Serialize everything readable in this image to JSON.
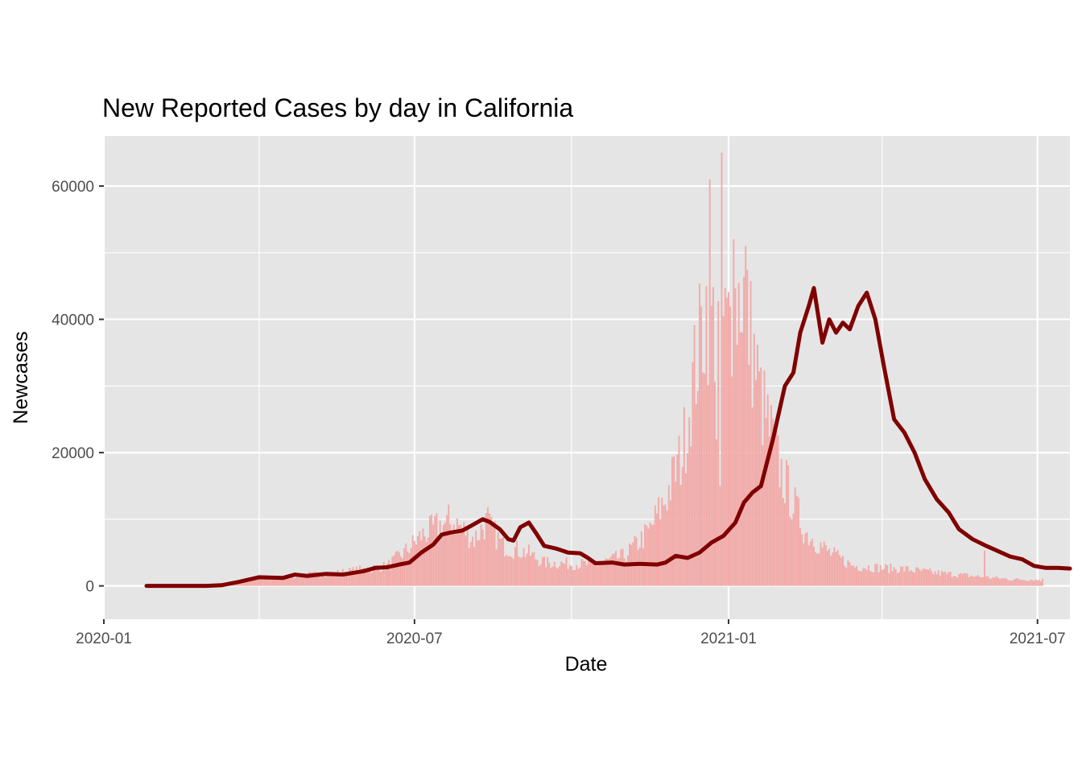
{
  "chart_data": {
    "type": "bar",
    "title": "New Reported Cases by day in California",
    "xlabel": "Date",
    "ylabel": "Newcases",
    "x_axis": {
      "type": "date",
      "range": [
        "2020-01-01",
        "2021-07-20"
      ],
      "ticks": [
        {
          "date": "2020-01-01",
          "label": "2020-01"
        },
        {
          "date": "2020-07-01",
          "label": "2020-07"
        },
        {
          "date": "2021-01-01",
          "label": "2021-01"
        },
        {
          "date": "2021-07-01",
          "label": "2021-07"
        }
      ],
      "minor_ticks": [
        "2020-04-01",
        "2020-10-01",
        "2021-04-01"
      ]
    },
    "y_axis": {
      "range": [
        -5000,
        67500
      ],
      "ticks": [
        0,
        20000,
        40000,
        60000
      ],
      "tick_labels": [
        "0",
        "20000",
        "40000",
        "60000"
      ],
      "minor_ticks": [
        10000,
        30000,
        50000
      ]
    },
    "grid": true,
    "legend": "none",
    "colors": {
      "panel_bg": "#e5e5e5",
      "grid": "#ffffff",
      "bar": "#f2a9a7",
      "line": "#800000"
    },
    "series": [
      {
        "type": "bar",
        "x_start": "2020-01-26",
        "x_end": "2021-07-04",
        "daily_new_cases_anchor_points": [
          [
            "2020-01-26",
            0
          ],
          [
            "2020-03-01",
            0
          ],
          [
            "2020-03-15",
            300
          ],
          [
            "2020-04-01",
            1200
          ],
          [
            "2020-04-15",
            1300
          ],
          [
            "2020-05-01",
            1700
          ],
          [
            "2020-05-15",
            1900
          ],
          [
            "2020-06-01",
            2500
          ],
          [
            "2020-06-15",
            3000
          ],
          [
            "2020-06-25",
            5000
          ],
          [
            "2020-07-05",
            7500
          ],
          [
            "2020-07-15",
            9000
          ],
          [
            "2020-07-25",
            9500
          ],
          [
            "2020-08-05",
            7000
          ],
          [
            "2020-08-12",
            9500
          ],
          [
            "2020-08-22",
            6000
          ],
          [
            "2020-09-05",
            5000
          ],
          [
            "2020-09-15",
            3500
          ],
          [
            "2020-10-01",
            3300
          ],
          [
            "2020-10-15",
            3200
          ],
          [
            "2020-11-01",
            4500
          ],
          [
            "2020-11-15",
            8000
          ],
          [
            "2020-11-25",
            13000
          ],
          [
            "2020-12-05",
            20000
          ],
          [
            "2020-12-12",
            32000
          ],
          [
            "2020-12-19",
            42000
          ],
          [
            "2020-12-25",
            38000
          ],
          [
            "2021-01-01",
            39000
          ],
          [
            "2021-01-09",
            45000
          ],
          [
            "2021-01-20",
            28000
          ],
          [
            "2021-02-01",
            17000
          ],
          [
            "2021-02-15",
            8000
          ],
          [
            "2021-03-01",
            5000
          ],
          [
            "2021-03-15",
            3000
          ],
          [
            "2021-04-01",
            2700
          ],
          [
            "2021-04-15",
            2500
          ],
          [
            "2021-05-01",
            2000
          ],
          [
            "2021-05-15",
            1700
          ],
          [
            "2021-06-01",
            1300
          ],
          [
            "2021-06-15",
            1000
          ],
          [
            "2021-07-04",
            900
          ]
        ],
        "spikes": [
          [
            "2020-07-21",
            12200
          ],
          [
            "2020-08-13",
            11800
          ],
          [
            "2020-12-21",
            61000
          ],
          [
            "2020-12-28",
            65000
          ],
          [
            "2021-01-04",
            52000
          ],
          [
            "2021-01-11",
            51000
          ],
          [
            "2021-05-31",
            5300
          ],
          [
            "2020-12-27",
            15000
          ],
          [
            "2020-12-25",
            22000
          ]
        ]
      },
      {
        "type": "line",
        "points": [
          [
            "2020-01-26",
            0
          ],
          [
            "2020-03-01",
            0
          ],
          [
            "2020-03-10",
            100
          ],
          [
            "2020-03-20",
            600
          ],
          [
            "2020-04-01",
            1300
          ],
          [
            "2020-04-15",
            1200
          ],
          [
            "2020-04-22",
            1700
          ],
          [
            "2020-04-29",
            1500
          ],
          [
            "2020-05-10",
            1800
          ],
          [
            "2020-05-20",
            1700
          ],
          [
            "2020-06-01",
            2200
          ],
          [
            "2020-06-08",
            2700
          ],
          [
            "2020-06-15",
            2800
          ],
          [
            "2020-06-22",
            3200
          ],
          [
            "2020-06-28",
            3500
          ],
          [
            "2020-07-05",
            5000
          ],
          [
            "2020-07-12",
            6200
          ],
          [
            "2020-07-17",
            7700
          ],
          [
            "2020-07-22",
            8000
          ],
          [
            "2020-07-29",
            8300
          ],
          [
            "2020-08-03",
            9000
          ],
          [
            "2020-08-10",
            10000
          ],
          [
            "2020-08-14",
            9600
          ],
          [
            "2020-08-20",
            8500
          ],
          [
            "2020-08-25",
            7000
          ],
          [
            "2020-08-28",
            6800
          ],
          [
            "2020-09-01",
            8800
          ],
          [
            "2020-09-06",
            9500
          ],
          [
            "2020-09-10",
            8000
          ],
          [
            "2020-09-15",
            6000
          ],
          [
            "2020-09-22",
            5600
          ],
          [
            "2020-09-29",
            5000
          ],
          [
            "2020-10-06",
            4900
          ],
          [
            "2020-10-10",
            4300
          ],
          [
            "2020-10-15",
            3400
          ],
          [
            "2020-10-25",
            3500
          ],
          [
            "2020-11-01",
            3200
          ],
          [
            "2020-11-10",
            3300
          ],
          [
            "2020-11-20",
            3200
          ],
          [
            "2020-11-25",
            3500
          ],
          [
            "2020-12-01",
            4500
          ],
          [
            "2020-12-08",
            4200
          ],
          [
            "2020-12-15",
            5000
          ],
          [
            "2020-12-22",
            6500
          ],
          [
            "2020-12-29",
            7500
          ],
          [
            "2021-01-05",
            9500
          ],
          [
            "2021-01-10",
            12500
          ],
          [
            "2021-01-15",
            14000
          ],
          [
            "2021-01-20",
            15000
          ],
          [
            "2021-01-27",
            22000
          ],
          [
            "2021-02-03",
            30000
          ],
          [
            "2021-02-08",
            32000
          ],
          [
            "2021-02-12",
            38000
          ],
          [
            "2021-02-17",
            42000
          ],
          [
            "2021-02-20",
            44700
          ],
          [
            "2021-02-25",
            36500
          ],
          [
            "2021-03-01",
            40000
          ],
          [
            "2021-03-05",
            38000
          ],
          [
            "2021-03-09",
            39500
          ],
          [
            "2021-03-13",
            38500
          ],
          [
            "2021-03-18",
            42000
          ],
          [
            "2021-03-23",
            44000
          ],
          [
            "2021-03-28",
            40000
          ],
          [
            "2021-04-02",
            33000
          ],
          [
            "2021-04-08",
            25000
          ],
          [
            "2021-04-14",
            23000
          ],
          [
            "2021-04-20",
            20000
          ],
          [
            "2021-04-26",
            16000
          ],
          [
            "2021-05-03",
            13000
          ],
          [
            "2021-05-10",
            11000
          ],
          [
            "2021-05-16",
            8500
          ],
          [
            "2021-05-24",
            7000
          ],
          [
            "2021-06-01",
            6000
          ],
          [
            "2021-06-08",
            5200
          ],
          [
            "2021-06-15",
            4400
          ],
          [
            "2021-06-22",
            4000
          ],
          [
            "2021-06-29",
            3000
          ],
          [
            "2021-07-06",
            2700
          ],
          [
            "2021-07-13",
            2700
          ],
          [
            "2021-07-20",
            2600
          ]
        ]
      }
    ]
  }
}
